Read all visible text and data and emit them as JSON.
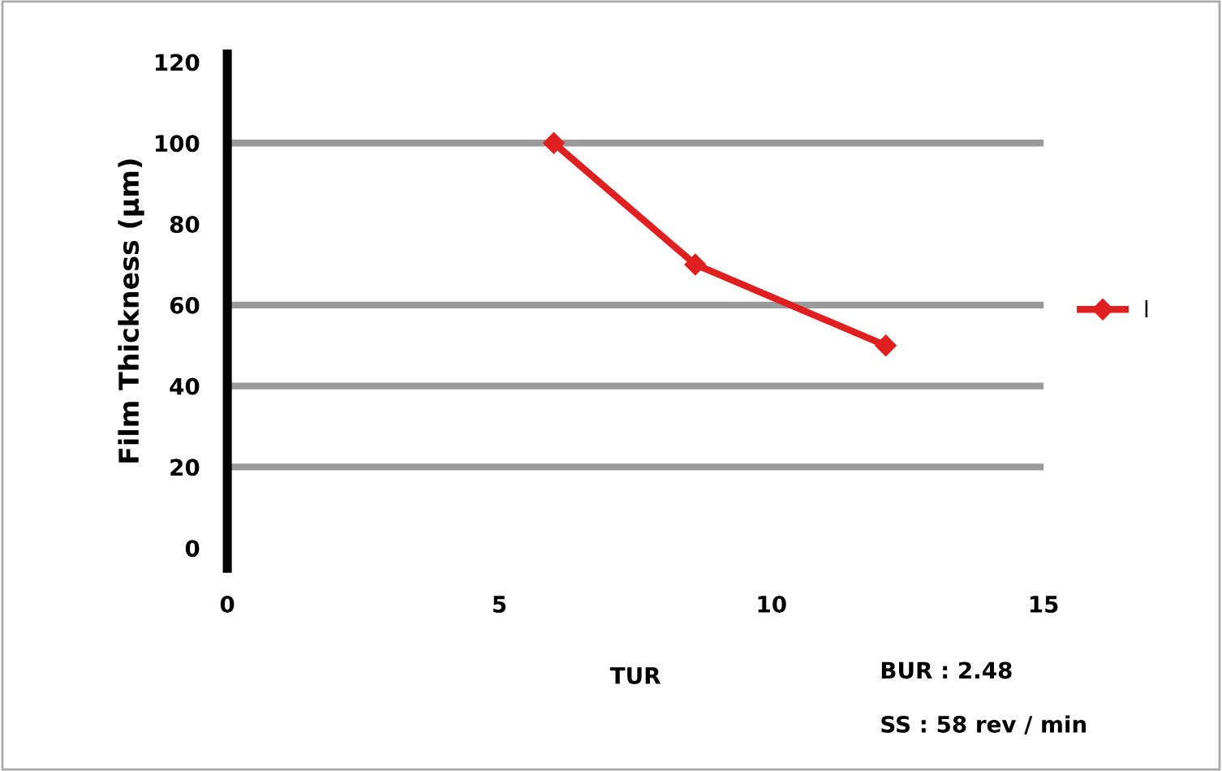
{
  "chart_data": {
    "type": "line",
    "xlabel": "TUR",
    "ylabel": "Film Thickness (μm)",
    "x": [
      6.0,
      8.6,
      12.1
    ],
    "series": [
      {
        "name": "l",
        "color": "#e02020",
        "values": [
          100,
          70,
          50
        ]
      }
    ],
    "xlim": [
      0,
      15
    ],
    "xticks": [
      0,
      5,
      10,
      15
    ],
    "ylim": [
      -5,
      122
    ],
    "yticks": [
      0,
      20,
      40,
      60,
      80,
      100,
      120
    ],
    "ref_lines": [
      {
        "axis": "y",
        "value": 20,
        "color": "#9a9a9a"
      },
      {
        "axis": "y",
        "value": 40,
        "color": "#9a9a9a"
      },
      {
        "axis": "y",
        "value": 60,
        "color": "#9a9a9a"
      },
      {
        "axis": "y",
        "value": 100,
        "color": "#9a9a9a"
      }
    ],
    "marker": "diamond",
    "line_style": "solid",
    "legend": "right",
    "grid": false,
    "annotations": [
      "BUR : 2.48",
      "SS : 58 rev / min"
    ]
  }
}
